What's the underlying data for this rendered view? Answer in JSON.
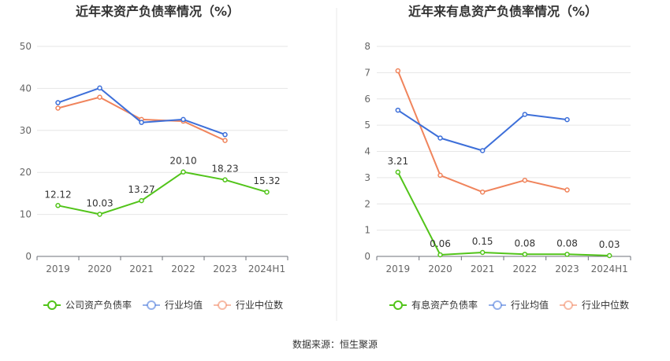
{
  "footer": {
    "source": "数据来源：恒生聚源"
  },
  "chart_data": [
    {
      "type": "line",
      "title": "近年来资产负债率情况（%）",
      "categories": [
        "2019",
        "2020",
        "2021",
        "2022",
        "2023",
        "2024H1"
      ],
      "ylim": [
        0,
        50
      ],
      "yticks": [
        0,
        10,
        20,
        30,
        40,
        50
      ],
      "grid": true,
      "legend": "bottom",
      "series": [
        {
          "name": "公司资产负债率",
          "color": "#52c41a",
          "values": [
            12.12,
            10.03,
            13.27,
            20.1,
            18.23,
            15.32
          ],
          "labels": [
            "12.12",
            "10.03",
            "13.27",
            "20.10",
            "18.23",
            "15.32"
          ]
        },
        {
          "name": "行业均值",
          "color": "#3d6fd9",
          "values": [
            36.6,
            40.1,
            31.9,
            32.6,
            29.0,
            null
          ]
        },
        {
          "name": "行业中位数",
          "color": "#f0845c",
          "values": [
            35.3,
            37.9,
            32.6,
            32.2,
            27.6,
            null
          ]
        }
      ]
    },
    {
      "type": "line",
      "title": "近年来有息资产负债率情况（%）",
      "categories": [
        "2019",
        "2020",
        "2021",
        "2022",
        "2023",
        "2024H1"
      ],
      "ylim": [
        0,
        8
      ],
      "yticks": [
        0,
        1,
        2,
        3,
        4,
        5,
        6,
        7,
        8
      ],
      "grid": true,
      "legend": "bottom",
      "series": [
        {
          "name": "有息资产负债率",
          "color": "#52c41a",
          "values": [
            3.21,
            0.06,
            0.15,
            0.08,
            0.08,
            0.03
          ],
          "labels": [
            "3.21",
            "0.06",
            "0.15",
            "0.08",
            "0.08",
            "0.03"
          ]
        },
        {
          "name": "行业均值",
          "color": "#3d6fd9",
          "values": [
            5.57,
            4.51,
            4.03,
            5.41,
            5.21,
            null
          ]
        },
        {
          "name": "行业中位数",
          "color": "#f0845c",
          "values": [
            7.07,
            3.09,
            2.45,
            2.9,
            2.53,
            null
          ]
        }
      ]
    }
  ]
}
